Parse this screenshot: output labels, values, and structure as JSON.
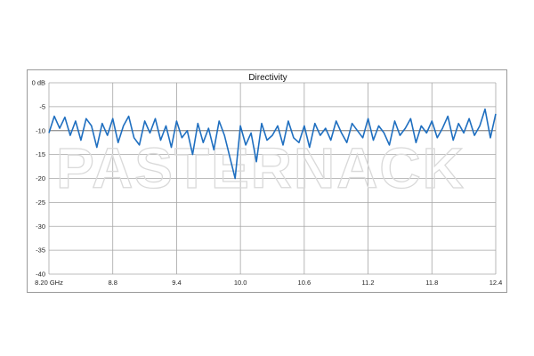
{
  "chart_data": {
    "type": "line",
    "title": "Directivity",
    "xlabel": "",
    "ylabel": "",
    "x_tick_labels": [
      "8.20 GHz",
      "8.8",
      "9.4",
      "10.0",
      "10.6",
      "11.2",
      "11.8",
      "12.4"
    ],
    "x_tick_values": [
      8.2,
      8.8,
      9.4,
      10.0,
      10.6,
      11.2,
      11.8,
      12.4
    ],
    "y_tick_labels": [
      "0 dB",
      "-5",
      "-10",
      "-15",
      "-20",
      "-25",
      "-30",
      "-35",
      "-40"
    ],
    "y_tick_values": [
      0,
      -5,
      -10,
      -15,
      -20,
      -25,
      -30,
      -35,
      -40
    ],
    "xlim": [
      8.2,
      12.4
    ],
    "ylim": [
      -40,
      0
    ],
    "grid": true,
    "legend": "none",
    "series_color": "#1f6fc0",
    "reference_level": -10,
    "reference_color": "#7f7f7f",
    "series": [
      {
        "x": [
          8.2,
          8.25,
          8.3,
          8.35,
          8.4,
          8.45,
          8.5,
          8.55,
          8.6,
          8.65,
          8.7,
          8.75,
          8.8,
          8.85,
          8.9,
          8.95,
          9.0,
          9.05,
          9.1,
          9.15,
          9.2,
          9.25,
          9.3,
          9.35,
          9.4,
          9.45,
          9.5,
          9.55,
          9.6,
          9.65,
          9.7,
          9.75,
          9.8,
          9.85,
          9.9,
          9.95,
          10.0,
          10.05,
          10.1,
          10.15,
          10.2,
          10.25,
          10.3,
          10.35,
          10.4,
          10.45,
          10.5,
          10.55,
          10.6,
          10.65,
          10.7,
          10.75,
          10.8,
          10.85,
          10.9,
          10.95,
          11.0,
          11.05,
          11.1,
          11.15,
          11.2,
          11.25,
          11.3,
          11.35,
          11.4,
          11.45,
          11.5,
          11.55,
          11.6,
          11.65,
          11.7,
          11.75,
          11.8,
          11.85,
          11.9,
          11.95,
          12.0,
          12.05,
          12.1,
          12.15,
          12.2,
          12.25,
          12.3,
          12.35,
          12.4
        ],
        "y": [
          -10.5,
          -7.0,
          -9.5,
          -7.2,
          -11.0,
          -8.0,
          -12.0,
          -7.5,
          -9.0,
          -13.5,
          -8.5,
          -11.0,
          -7.5,
          -12.5,
          -9.0,
          -7.0,
          -11.5,
          -13.0,
          -8.0,
          -10.5,
          -7.5,
          -12.0,
          -9.0,
          -13.5,
          -8.0,
          -11.5,
          -10.0,
          -15.0,
          -8.5,
          -12.5,
          -9.5,
          -14.0,
          -8.0,
          -11.0,
          -15.5,
          -20.0,
          -9.0,
          -13.0,
          -10.5,
          -16.5,
          -8.5,
          -12.0,
          -11.0,
          -9.0,
          -13.0,
          -8.0,
          -11.5,
          -12.5,
          -9.0,
          -13.5,
          -8.5,
          -11.0,
          -9.5,
          -12.0,
          -8.0,
          -10.5,
          -12.5,
          -8.5,
          -10.0,
          -11.5,
          -7.5,
          -12.0,
          -9.0,
          -10.5,
          -13.0,
          -8.0,
          -11.0,
          -9.5,
          -7.5,
          -12.5,
          -9.0,
          -10.5,
          -8.0,
          -11.5,
          -9.5,
          -7.0,
          -12.0,
          -8.5,
          -10.5,
          -7.5,
          -11.0,
          -9.0,
          -5.5,
          -11.5,
          -6.5
        ]
      }
    ]
  },
  "watermark": {
    "text": "PASTERNACK"
  }
}
